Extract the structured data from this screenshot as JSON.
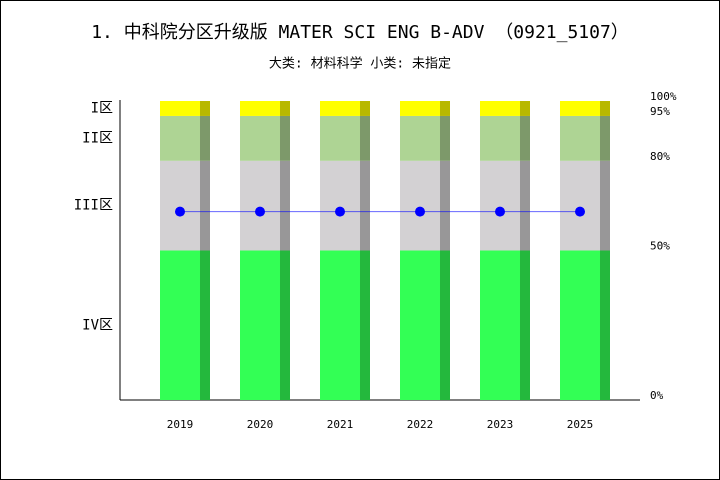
{
  "chart_data": {
    "type": "stacked-bar",
    "title": "1. 中科院分区升级版 MATER SCI ENG B-ADV （0921_5107）",
    "subtitle": "大类: 材料科学 小类: 未指定",
    "categories": [
      "2019",
      "2020",
      "2021",
      "2022",
      "2023",
      "2025"
    ],
    "series": [
      {
        "name": "IV区",
        "color": "#33ff55",
        "values": [
          50,
          50,
          50,
          50,
          50,
          50
        ]
      },
      {
        "name": "III区",
        "color": "#d3d1d3",
        "values": [
          30,
          30,
          30,
          30,
          30,
          30
        ]
      },
      {
        "name": "II区",
        "color": "#aed494",
        "values": [
          15,
          15,
          15,
          15,
          15,
          15
        ]
      },
      {
        "name": "I区",
        "color": "#ffff00",
        "values": [
          5,
          5,
          5,
          5,
          5,
          5
        ]
      }
    ],
    "line": {
      "color": "#0000ff",
      "values": [
        63,
        63,
        63,
        63,
        63,
        63
      ]
    },
    "ylim": [
      0,
      100
    ],
    "yticks": [
      {
        "value": 0,
        "label": "0%"
      },
      {
        "value": 50,
        "label": "50%"
      },
      {
        "value": 80,
        "label": "80%"
      },
      {
        "value": 95,
        "label": "95%"
      },
      {
        "value": 100,
        "label": "100%"
      }
    ]
  }
}
